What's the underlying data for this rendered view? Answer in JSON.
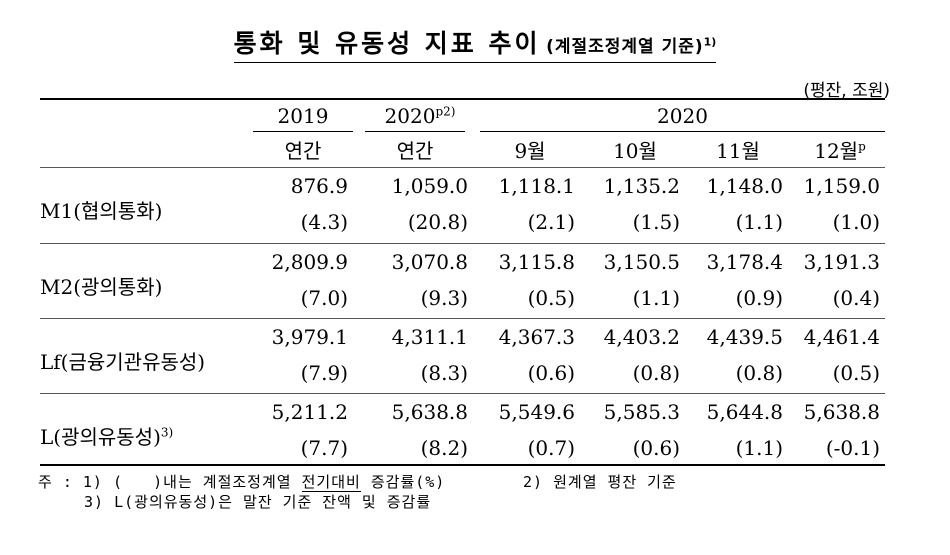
{
  "title": {
    "main": "통화 및 유동성 지표 추이",
    "sub": "(계절조정계열 기준)",
    "sup": "1)"
  },
  "unit": "(평잔, 조원)",
  "columns": {
    "year_2019": "2019",
    "year_2020p": "2020",
    "year_2020p_sup": "p2)",
    "group_2020": "2020",
    "sub": [
      "연간",
      "연간",
      "9월",
      "10월",
      "11월",
      "12월"
    ],
    "last_sup": "p"
  },
  "rows": [
    {
      "label": "M1(협의통화)",
      "label_sup": "",
      "values": [
        "876.9",
        "1,059.0",
        "1,118.1",
        "1,135.2",
        "1,148.0",
        "1,159.0"
      ],
      "changes": [
        "(4.3)",
        "(20.8)",
        "(2.1)",
        "(1.5)",
        "(1.1)",
        "(1.0)"
      ]
    },
    {
      "label": "M2(광의통화)",
      "label_sup": "",
      "values": [
        "2,809.9",
        "3,070.8",
        "3,115.8",
        "3,150.5",
        "3,178.4",
        "3,191.3"
      ],
      "changes": [
        "(7.0)",
        "(9.3)",
        "(0.5)",
        "(1.1)",
        "(0.9)",
        "(0.4)"
      ]
    },
    {
      "label": "Lf(금융기관유동성)",
      "label_sup": "",
      "values": [
        "3,979.1",
        "4,311.1",
        "4,367.3",
        "4,403.2",
        "4,439.5",
        "4,461.4"
      ],
      "changes": [
        "(7.9)",
        "(8.3)",
        "(0.6)",
        "(0.8)",
        "(0.8)",
        "(0.5)"
      ]
    },
    {
      "label": "L(광의유동성)",
      "label_sup": "3)",
      "values": [
        "5,211.2",
        "5,638.8",
        "5,549.6",
        "5,585.3",
        "5,644.8",
        "5,638.8"
      ],
      "changes": [
        "(7.7)",
        "(8.2)",
        "(0.7)",
        "(0.6)",
        "(1.1)",
        "(-0.1)"
      ]
    }
  ],
  "notes": {
    "prefix": "주 : 1) (   )내는 계절조정계열 ",
    "underlined": "전기대비",
    "rest": " 증감률(%)",
    "note2": "2) 원계열 평잔 기준",
    "note3": "3) L(광의유동성)은 말잔 기준 잔액 및 증감률"
  }
}
